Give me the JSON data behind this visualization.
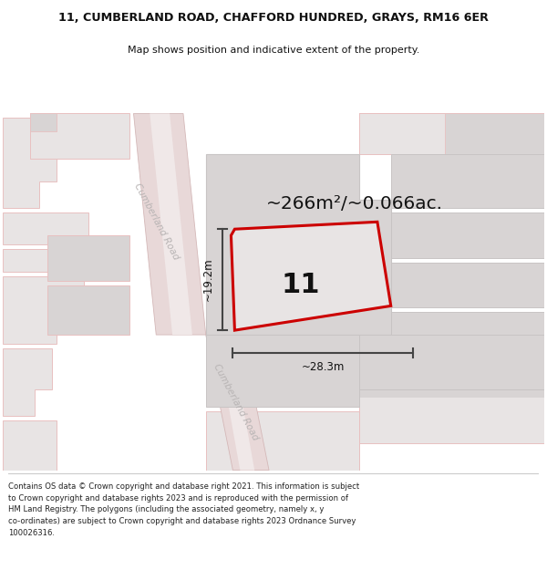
{
  "title_line1": "11, CUMBERLAND ROAD, CHAFFORD HUNDRED, GRAYS, RM16 6ER",
  "title_line2": "Map shows position and indicative extent of the property.",
  "area_label": "~266m²/~0.066ac.",
  "number_label": "11",
  "dim_height": "~19.2m",
  "dim_width": "~28.3m",
  "footer_lines": [
    "Contains OS data © Crown copyright and database right 2021. This information is subject to Crown copyright and database rights 2023 and is reproduced with the permission of",
    "HM Land Registry. The polygons (including the associated geometry, namely x, y co-ordinates) are subject to Crown copyright and database rights 2023 Ordnance Survey",
    "100026316."
  ],
  "map_bg": "#ffffff",
  "road_fill": "#e8d8d8",
  "road_edge": "#d4b8b8",
  "road_stripe": "#f0e8e8",
  "block_fill_dark": "#d8d4d4",
  "block_fill_light": "#e8e4e4",
  "block_edge_pink": "#e8c0c0",
  "block_edge_gray": "#c8c4c4",
  "red_color": "#cc0000",
  "plot_fill": "#e8e4e4",
  "text_dark": "#111111",
  "text_road": "#b8b4b4",
  "footer_color": "#222222",
  "dim_color": "#444444",
  "white": "#ffffff"
}
